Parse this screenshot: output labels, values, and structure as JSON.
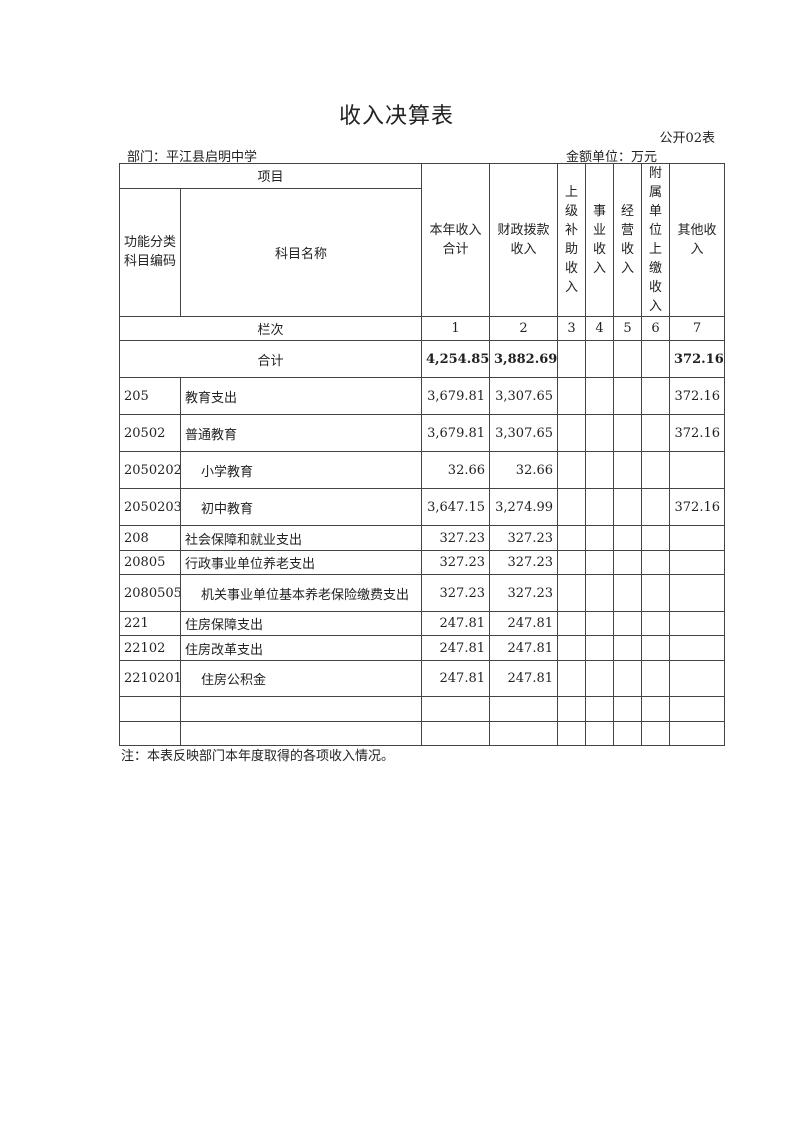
{
  "title": "收入决算表",
  "form_no": "公开02表",
  "department": "部门：平江县启明中学",
  "unit": "金额单位：万元",
  "headers": {
    "item": "项目",
    "code": "功能分类科目编码",
    "name": "科目名称",
    "cols": [
      "本年收入合计",
      "财政拨款收入",
      "上级补助收入",
      "事业收入",
      "经营收入",
      "附属单位上缴收入",
      "其他收入"
    ],
    "col_seq_label": "栏次",
    "col_seq": [
      "1",
      "2",
      "3",
      "4",
      "5",
      "6",
      "7"
    ]
  },
  "total": {
    "label": "合计",
    "values": [
      "4,254.85",
      "3,882.69",
      "",
      "",
      "",
      "",
      "372.16"
    ]
  },
  "rows": [
    {
      "code": "205",
      "name": "教育支出",
      "values": [
        "3,679.81",
        "3,307.65",
        "",
        "",
        "",
        "",
        "372.16"
      ]
    },
    {
      "code": "20502",
      "name": "普通教育",
      "values": [
        "3,679.81",
        "3,307.65",
        "",
        "",
        "",
        "",
        "372.16"
      ]
    },
    {
      "code": "2050202",
      "name": "小学教育",
      "values": [
        "32.66",
        "32.66",
        "",
        "",
        "",
        "",
        ""
      ]
    },
    {
      "code": "2050203",
      "name": "初中教育",
      "values": [
        "3,647.15",
        "3,274.99",
        "",
        "",
        "",
        "",
        "372.16"
      ]
    },
    {
      "code": "208",
      "name": "社会保障和就业支出",
      "values": [
        "327.23",
        "327.23",
        "",
        "",
        "",
        "",
        ""
      ]
    },
    {
      "code": "20805",
      "name": "行政事业单位养老支出",
      "values": [
        "327.23",
        "327.23",
        "",
        "",
        "",
        "",
        ""
      ]
    },
    {
      "code": "2080505",
      "name": "机关事业单位基本养老保险缴费支出",
      "values": [
        "327.23",
        "327.23",
        "",
        "",
        "",
        "",
        ""
      ]
    },
    {
      "code": "221",
      "name": "住房保障支出",
      "values": [
        "247.81",
        "247.81",
        "",
        "",
        "",
        "",
        ""
      ]
    },
    {
      "code": "22102",
      "name": "住房改革支出",
      "values": [
        "247.81",
        "247.81",
        "",
        "",
        "",
        "",
        ""
      ]
    },
    {
      "code": "2210201",
      "name": "住房公积金",
      "values": [
        "247.81",
        "247.81",
        "",
        "",
        "",
        "",
        ""
      ]
    }
  ],
  "note": "注：本表反映部门本年度取得的各项收入情况。"
}
